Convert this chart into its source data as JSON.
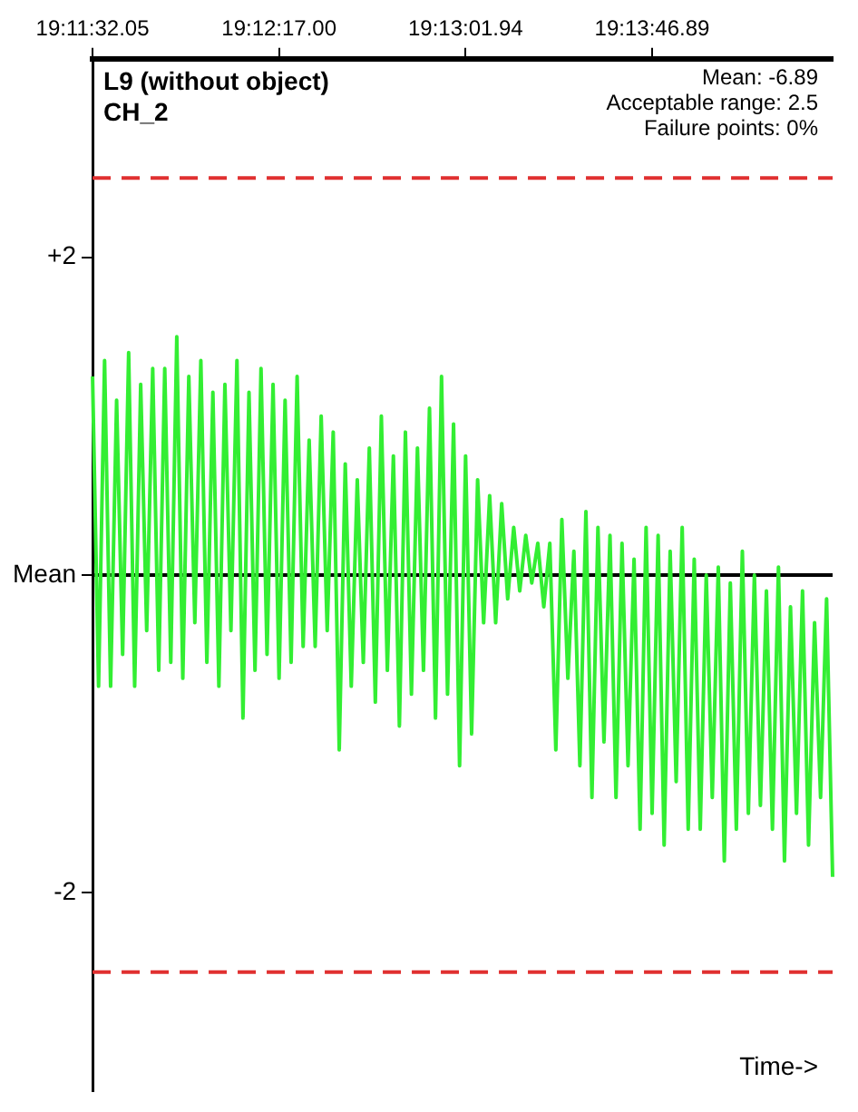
{
  "chart_data": {
    "type": "line",
    "title": "L9 (without object)",
    "subtitle": "CH_2",
    "xlabel": "Time->",
    "annotations": [
      "Mean: -6.89",
      "Acceptable range: 2.5",
      "Failure points: 0%"
    ],
    "categories": [
      "19:11:32.05",
      null,
      null,
      null,
      null,
      null,
      null,
      null,
      null,
      null,
      null,
      null,
      null,
      null,
      null,
      null,
      null,
      null,
      null,
      null,
      null,
      null,
      null,
      null,
      null,
      null,
      null,
      null,
      null,
      null,
      null,
      "19:12:17.00",
      null,
      null,
      null,
      null,
      null,
      null,
      null,
      null,
      null,
      null,
      null,
      null,
      null,
      null,
      null,
      null,
      null,
      null,
      null,
      null,
      null,
      null,
      null,
      null,
      null,
      null,
      null,
      null,
      null,
      null,
      "19:13:01.94",
      null,
      null,
      null,
      null,
      null,
      null,
      null,
      null,
      null,
      null,
      null,
      null,
      null,
      null,
      null,
      null,
      null,
      null,
      null,
      null,
      null,
      null,
      null,
      null,
      null,
      null,
      null,
      null,
      null,
      null,
      "19:13:46.89",
      null,
      null,
      null,
      null,
      null,
      null,
      null,
      null,
      null,
      null,
      null,
      null,
      null,
      null,
      null,
      null,
      null,
      null,
      null,
      null,
      null,
      null,
      null,
      null,
      null,
      null,
      null,
      null,
      null,
      null
    ],
    "series": [
      {
        "color": "#33ee33",
        "values": [
          1.25,
          -0.7,
          1.35,
          -0.7,
          1.1,
          -0.5,
          1.4,
          -0.7,
          1.2,
          -0.35,
          1.3,
          -0.6,
          1.3,
          -0.55,
          1.5,
          -0.65,
          1.25,
          -0.3,
          1.35,
          -0.55,
          1.15,
          -0.7,
          1.2,
          -0.35,
          1.35,
          -0.9,
          1.15,
          -0.6,
          1.3,
          -0.5,
          1.2,
          -0.65,
          1.1,
          -0.55,
          1.25,
          -0.45,
          0.85,
          -0.45,
          1.0,
          -0.35,
          0.9,
          -1.1,
          0.7,
          -0.7,
          0.6,
          -0.55,
          0.8,
          -0.8,
          1.0,
          -0.6,
          0.75,
          -0.95,
          0.9,
          -0.75,
          0.8,
          -0.6,
          1.05,
          -0.9,
          1.25,
          -0.75,
          0.95,
          -1.2,
          0.75,
          -1.0,
          0.6,
          -0.3,
          0.5,
          -0.3,
          0.45,
          -0.15,
          0.3,
          -0.1,
          0.25,
          -0.05,
          0.2,
          -0.2,
          0.2,
          -1.1,
          0.35,
          -0.65,
          0.15,
          -1.2,
          0.4,
          -1.4,
          0.3,
          -1.05,
          0.25,
          -1.4,
          0.2,
          -1.2,
          0.1,
          -1.6,
          0.3,
          -1.5,
          0.25,
          -1.7,
          0.15,
          -1.3,
          0.3,
          -1.6,
          0.1,
          -1.6,
          0.0,
          -1.4,
          0.05,
          -1.8,
          -0.05,
          -1.6,
          0.15,
          -1.5,
          0.0,
          -1.45,
          -0.1,
          -1.6,
          0.05,
          -1.8,
          -0.2,
          -1.5,
          -0.1,
          -1.7,
          -0.3,
          -1.4,
          -0.15,
          -1.9
        ]
      }
    ],
    "ylim": [
      -3.25,
      3.25
    ],
    "yticks": [
      {
        "value": 2,
        "label": "+2"
      },
      {
        "value": 0,
        "label": "Mean"
      },
      {
        "value": -2,
        "label": "-2"
      }
    ],
    "ref_lines": [
      {
        "axis": "y",
        "value": 0,
        "color": "#000000",
        "line_style": "solid"
      },
      {
        "axis": "y",
        "value": 2.5,
        "color": "#e03030",
        "line_style": "dashed"
      },
      {
        "axis": "y",
        "value": -2.5,
        "color": "#e03030",
        "line_style": "dashed"
      }
    ],
    "grid": false,
    "legend": false,
    "marker": "none",
    "line_style": "solid"
  }
}
